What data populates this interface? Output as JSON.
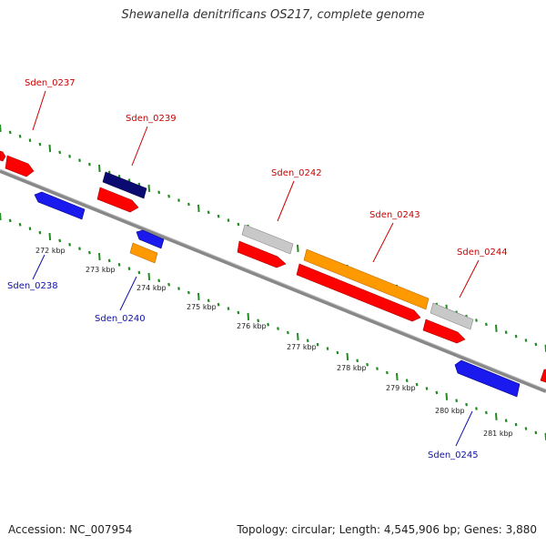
{
  "title": "Shewanella denitrificans OS217, complete genome",
  "footer": {
    "accession": "Accession: NC_007954",
    "summary": "Topology: circular; Length: 4,545,906 bp; Genes: 3,880"
  },
  "colors": {
    "forward_cds": "#ff0000",
    "reverse_cds": "#1a1aee",
    "orange_cds": "#ff9900",
    "dark_blue_cds": "#0a0a70",
    "grey_cds": "#bdbdbd",
    "backbone": "#888888",
    "tick_marks": "#228b22",
    "forward_label": "#cc0000",
    "reverse_label": "#1010aa"
  },
  "scale_ticks": [
    "272 kbp",
    "273 kbp",
    "274 kbp",
    "275 kbp",
    "276 kbp",
    "277 kbp",
    "278 kbp",
    "279 kbp",
    "280 kbp",
    "281 kbp"
  ],
  "gene_labels": {
    "forward": [
      "Sden_0237",
      "Sden_0239",
      "Sden_0242",
      "Sden_0243",
      "Sden_0244"
    ],
    "reverse": [
      "Sden_0238",
      "Sden_0240",
      "Sden_0245"
    ]
  }
}
